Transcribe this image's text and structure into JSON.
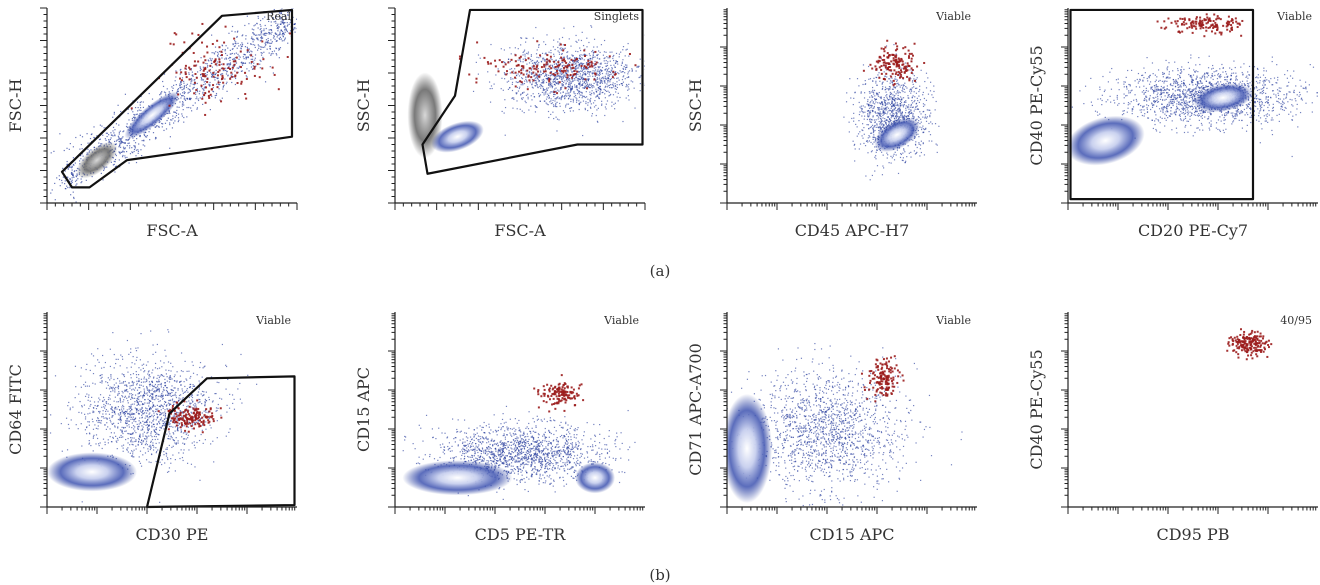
{
  "figure": {
    "row_labels": [
      "(a)",
      "(b)"
    ]
  },
  "chart_data": [
    {
      "type": "scatter",
      "row": "a",
      "xlabel": "FSC-A",
      "ylabel": "FSC-H",
      "gate_label": "Real",
      "scale": "linear"
    },
    {
      "type": "scatter",
      "row": "a",
      "xlabel": "FSC-A",
      "ylabel": "SSC-H",
      "gate_label": "Singlets",
      "scale": "linear"
    },
    {
      "type": "scatter",
      "row": "a",
      "xlabel": "CD45 APC-H7",
      "ylabel": "SSC-H",
      "gate_label": "Viable",
      "scale": "log"
    },
    {
      "type": "scatter",
      "row": "a",
      "xlabel": "CD20 PE-Cy7",
      "ylabel": "CD40 PE-Cy55",
      "gate_label": "Viable",
      "scale": "log"
    },
    {
      "type": "scatter",
      "row": "b",
      "xlabel": "CD30 PE",
      "ylabel": "CD64 FITC",
      "gate_label": "Viable",
      "scale": "log"
    },
    {
      "type": "scatter",
      "row": "b",
      "xlabel": "CD5 PE-TR",
      "ylabel": "CD15 APC",
      "gate_label": "Viable",
      "scale": "log"
    },
    {
      "type": "scatter",
      "row": "b",
      "xlabel": "CD15 APC",
      "ylabel": "CD71 APC-A700",
      "gate_label": "Viable",
      "scale": "log"
    },
    {
      "type": "scatter",
      "row": "b",
      "xlabel": "CD95 PB",
      "ylabel": "CD40 PE-Cy55",
      "gate_label": "40/95",
      "scale": "log"
    }
  ],
  "colors": {
    "population_blue": "#2a3f9e",
    "population_core": "#ffffff",
    "highlight_red": "#9b1c1c",
    "debris_gray": "#6a6a6a",
    "gate": "#111111"
  }
}
